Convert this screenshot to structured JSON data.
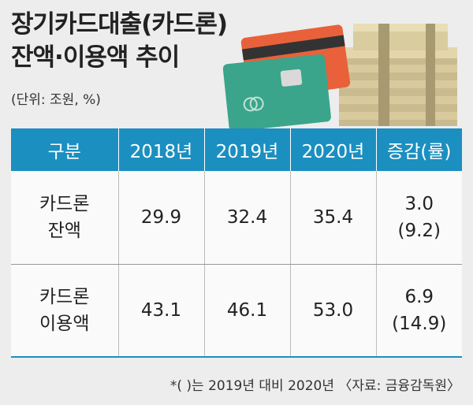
{
  "title": {
    "line1": "장기카드대출(카드론)",
    "line2": "잔액·이용액 추이"
  },
  "unit_note": "(단위: 조원, %)",
  "table": {
    "headers": [
      "구분",
      "2018년",
      "2019년",
      "2020년",
      "증감(률)"
    ],
    "rows": [
      {
        "label_line1": "카드론",
        "label_line2": "잔액",
        "y2018": "29.9",
        "y2019": "32.4",
        "y2020": "35.4",
        "change": "3.0",
        "change_rate": "(9.2)"
      },
      {
        "label_line1": "카드론",
        "label_line2": "이용액",
        "y2018": "43.1",
        "y2019": "46.1",
        "y2020": "53.0",
        "change": "6.9",
        "change_rate": "(14.9)"
      }
    ]
  },
  "footnote": "*( )는 2019년 대비 2020년 〈자료: 금융감독원〉",
  "colors": {
    "header_bg": "#1b8fc0",
    "page_bg": "#ededed"
  }
}
